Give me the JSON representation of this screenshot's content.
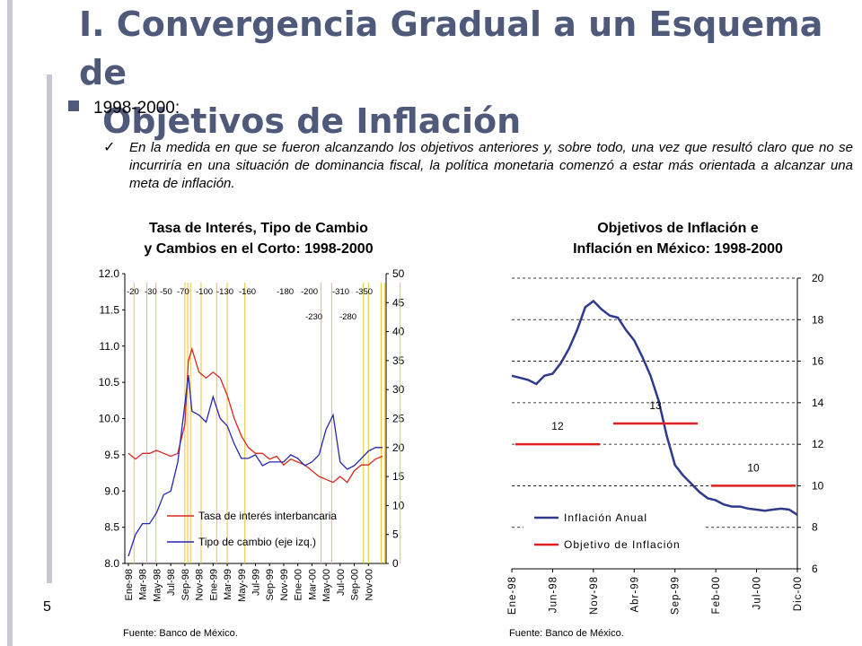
{
  "slide": {
    "title_line1": "I. Convergencia Gradual a un Esquema de",
    "title_line2": "Objetivos de Inflación",
    "bullet": "1998-2000:",
    "paragraph": "En la medida en que se fueron alcanzando los objetivos anteriores y, sobre todo, una vez que resultó claro que no se incurriría en una situación de dominancia fiscal, la política monetaria comenzó a estar más orientada a alcanzar una meta de inflación.",
    "page_number": "5",
    "source_left": "Fuente: Banco de México.",
    "source_right": "Fuente: Banco de México."
  },
  "chart_data": [
    {
      "type": "line",
      "title_line1": "Tasa de Interés, Tipo de Cambio",
      "title_line2": "y Cambios en el Corto: 1998-2000",
      "x_ticks": [
        "Ene-98",
        "Mar-98",
        "May-98",
        "Jul-98",
        "Sep-98",
        "Nov-98",
        "Ene-99",
        "Mar-99",
        "May-99",
        "Jul-99",
        "Sep-99",
        "Nov-99",
        "Ene-00",
        "Mar-00",
        "May-00",
        "Jul-00",
        "Sep-00",
        "Nov-00"
      ],
      "y_left_ticks": [
        "12.0",
        "11.5",
        "11.0",
        "10.5",
        "10.0",
        "9.5",
        "9.0",
        "8.5",
        "8.0"
      ],
      "y_right_ticks": [
        "50",
        "45",
        "40",
        "35",
        "30",
        "25",
        "20",
        "15",
        "10",
        "5",
        "0"
      ],
      "ylim_left": [
        8.0,
        12.0
      ],
      "ylim_right": [
        0,
        50
      ],
      "corto_top_labels": [
        "-20",
        "-30",
        "-50",
        "-70",
        "-100",
        "-130",
        "-160",
        "-180",
        "-200",
        "-310",
        "-350"
      ],
      "corto_low_labels": [
        "-230",
        "-280"
      ],
      "corto_months": [
        0.8,
        2.6,
        3.9,
        8.0,
        8.4,
        8.8,
        10.3,
        12.5,
        14.0,
        16.5,
        27.3,
        28.8,
        33.3,
        34.0,
        35.8,
        36.3,
        38.5
      ],
      "series": [
        {
          "name": "Tasa de interés interbancaria",
          "axis": "right",
          "color": "#d42a1e",
          "x": [
            0,
            1,
            2,
            3,
            4,
            5,
            6,
            7,
            8,
            8.5,
            9,
            10,
            11,
            12,
            13,
            14,
            15,
            16,
            17,
            18,
            19,
            20,
            21,
            22,
            23,
            24,
            25,
            26,
            27,
            28,
            29,
            30,
            31,
            32,
            33,
            34,
            35,
            36
          ],
          "values": [
            19,
            18,
            19,
            19,
            19.5,
            19,
            18.5,
            19,
            24,
            35,
            37,
            33,
            32,
            33,
            32,
            29,
            25,
            22,
            20,
            19,
            19,
            18,
            18.5,
            17,
            18,
            17.5,
            17,
            16,
            15,
            14.5,
            14,
            15,
            14,
            16,
            17,
            17,
            18,
            18.5
          ]
        },
        {
          "name": "Tipo de cambio (eje izq.)",
          "axis": "left",
          "color": "#2727b0",
          "x": [
            0,
            1,
            2,
            3,
            4,
            5,
            6,
            7,
            8,
            8.5,
            9,
            10,
            11,
            12,
            13,
            14,
            15,
            16,
            17,
            18,
            19,
            20,
            21,
            22,
            23,
            24,
            25,
            26,
            27,
            28,
            29,
            30,
            31,
            32,
            33,
            34,
            35,
            36
          ],
          "values": [
            8.1,
            8.4,
            8.55,
            8.55,
            8.7,
            8.95,
            9.0,
            9.4,
            10.2,
            10.6,
            10.1,
            10.05,
            9.95,
            10.3,
            10.0,
            9.9,
            9.65,
            9.45,
            9.45,
            9.5,
            9.35,
            9.4,
            9.4,
            9.4,
            9.5,
            9.45,
            9.35,
            9.4,
            9.5,
            9.85,
            10.05,
            9.4,
            9.3,
            9.35,
            9.45,
            9.55,
            9.6,
            9.6
          ]
        }
      ]
    },
    {
      "type": "line",
      "title_line1": "Objetivos de Inflación e",
      "title_line2": "Inflación en México: 1998-2000",
      "x_ticks": [
        "Ene-98",
        "Jun-98",
        "Nov-98",
        "Abr-99",
        "Sep-99",
        "Feb-00",
        "Jul-00",
        "Dic-00"
      ],
      "y_ticks": [
        "20",
        "18",
        "16",
        "14",
        "12",
        "10",
        "8",
        "6"
      ],
      "ylim": [
        6,
        20
      ],
      "series": [
        {
          "name": "Inflación Anual",
          "color": "#2e3a8c",
          "x": [
            0,
            1,
            2,
            3,
            4,
            5,
            6,
            7,
            8,
            9,
            10,
            11,
            12,
            13,
            14,
            15,
            16,
            17,
            18,
            19,
            20,
            21,
            22,
            23,
            24,
            25,
            26,
            27,
            28,
            29,
            30,
            31,
            32,
            33,
            34,
            35
          ],
          "values": [
            15.3,
            15.2,
            15.1,
            14.9,
            15.3,
            15.4,
            15.9,
            16.6,
            17.5,
            18.6,
            18.9,
            18.5,
            18.2,
            18.1,
            17.5,
            17.0,
            16.2,
            15.3,
            14.1,
            12.4,
            11.0,
            10.5,
            10.1,
            9.7,
            9.4,
            9.3,
            9.1,
            9.0,
            9.0,
            8.9,
            8.85,
            8.8,
            8.85,
            8.9,
            8.85,
            8.6
          ]
        },
        {
          "name": "Objetivo de Inflación",
          "color": "#e02020",
          "segments": [
            {
              "label": "12",
              "from": 0,
              "to": 11,
              "value": 12
            },
            {
              "label": "13",
              "from": 12,
              "to": 23,
              "value": 13
            },
            {
              "label": "10",
              "from": 24,
              "to": 35,
              "value": 10
            }
          ]
        }
      ]
    }
  ]
}
